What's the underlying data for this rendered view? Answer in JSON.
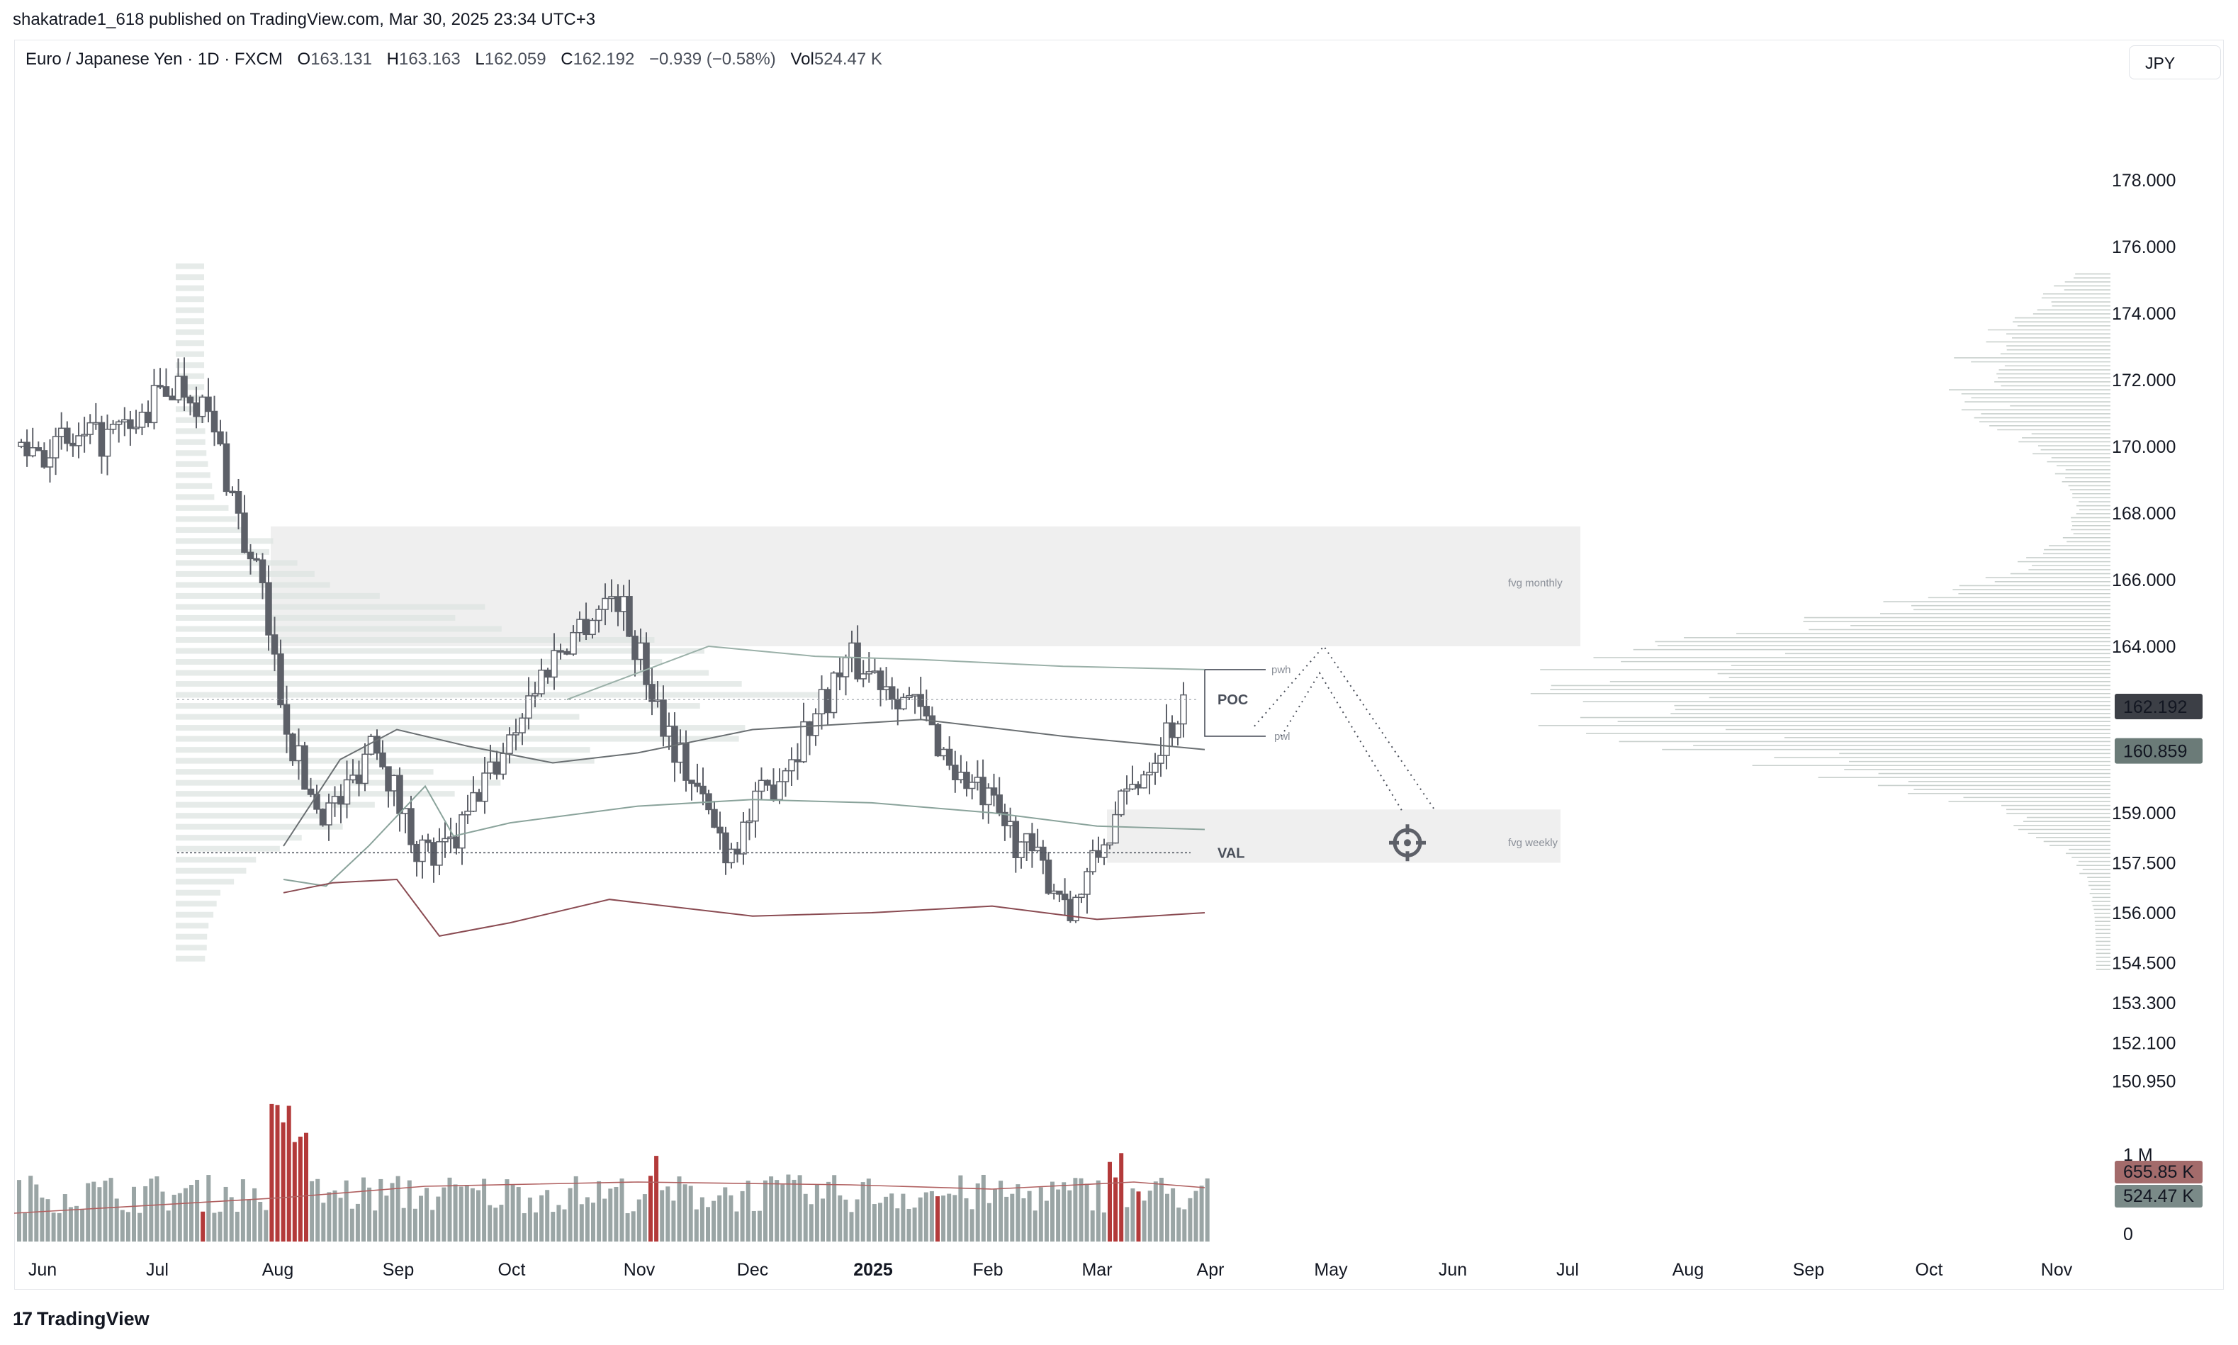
{
  "header": {
    "publisher_line": "shakatrade1_618 published on TradingView.com, Mar 30, 2025 23:34 UTC+3"
  },
  "legend": {
    "symbol": "Euro / Japanese Yen · 1D · FXCM",
    "open_label": "O",
    "open": "163.131",
    "high_label": "H",
    "high": "163.163",
    "low_label": "L",
    "low": "162.059",
    "close_label": "C",
    "close": "162.192",
    "change": "−0.939 (−0.58%)",
    "vol_label": "Vol",
    "vol": "524.47 K"
  },
  "currency_button": "JPY",
  "footer": {
    "brand": "TradingView",
    "logo_text": "17"
  },
  "colors": {
    "up_volume": "#9aa5a5",
    "down_volume": "#b33a3a",
    "candle": "#5d6068",
    "zone": "#efefef",
    "price_badge": "#3c3f46",
    "ma_badge": "#6b7b78",
    "vol_badge_red": "#a36b6b",
    "vol_badge_grey": "#7a8a88"
  },
  "chart_data": {
    "type": "candlestick",
    "price_axis_ticks": [
      "178.000",
      "176.000",
      "174.000",
      "172.000",
      "170.000",
      "168.000",
      "166.000",
      "164.000",
      "162.192",
      "160.859",
      "159.000",
      "157.500",
      "156.000",
      "154.500",
      "153.300",
      "152.100",
      "150.950"
    ],
    "price_badges": [
      {
        "value": "162.192",
        "kind": "last price"
      },
      {
        "value": "160.859",
        "kind": "moving average"
      }
    ],
    "volume_axis_ticks": [
      "1 M",
      "0"
    ],
    "volume_badges": [
      "655.85 K",
      "524.47 K"
    ],
    "x_ticks": [
      "Jun",
      "Jul",
      "Aug",
      "Sep",
      "Oct",
      "Nov",
      "Dec",
      "2025",
      "Feb",
      "Mar",
      "Apr",
      "May",
      "Jun",
      "Jul",
      "Aug",
      "Sep",
      "Oct",
      "Nov"
    ],
    "annotations": [
      {
        "text": "fvg monthly",
        "y_range": [
          164.0,
          167.6
        ]
      },
      {
        "text": "fvg weekly",
        "y_range": [
          157.5,
          159.1
        ]
      },
      {
        "text": "POC",
        "y": 162.4
      },
      {
        "text": "VAL",
        "y": 157.8
      },
      {
        "text": "pwh",
        "y": 163.3
      },
      {
        "text": "pwl",
        "y": 161.3
      }
    ],
    "projection": [
      {
        "date": "2025-03-28",
        "price": 162.2
      },
      {
        "date": "2025-04-24",
        "price": 164.0
      },
      {
        "date": "2025-05-27",
        "price": 158.8
      }
    ],
    "ohlc_monthly_path": [
      {
        "month": "Jun 2024",
        "open": 170.0,
        "high": 172.2,
        "low": 168.0,
        "close": 170.5
      },
      {
        "month": "Jul 2024",
        "open": 170.5,
        "high": 175.4,
        "low": 166.0,
        "close": 166.4
      },
      {
        "month": "Aug 2024",
        "open": 166.4,
        "high": 166.8,
        "low": 154.6,
        "close": 161.3
      },
      {
        "month": "Sep 2024",
        "open": 161.3,
        "high": 161.9,
        "low": 155.2,
        "close": 160.1
      },
      {
        "month": "Oct 2024",
        "open": 160.1,
        "high": 166.7,
        "low": 160.0,
        "close": 165.5
      },
      {
        "month": "Nov 2024",
        "open": 165.5,
        "high": 166.0,
        "low": 156.8,
        "close": 158.0
      },
      {
        "month": "Dec 2024",
        "open": 158.0,
        "high": 164.8,
        "low": 156.6,
        "close": 163.5
      },
      {
        "month": "Jan 2025",
        "open": 163.5,
        "high": 164.9,
        "low": 159.6,
        "close": 160.0
      },
      {
        "month": "Feb 2025",
        "open": 160.0,
        "high": 160.6,
        "low": 155.7,
        "close": 156.3
      },
      {
        "month": "Mar 2025",
        "open": 156.3,
        "high": 164.2,
        "low": 154.8,
        "close": 162.19
      }
    ]
  }
}
